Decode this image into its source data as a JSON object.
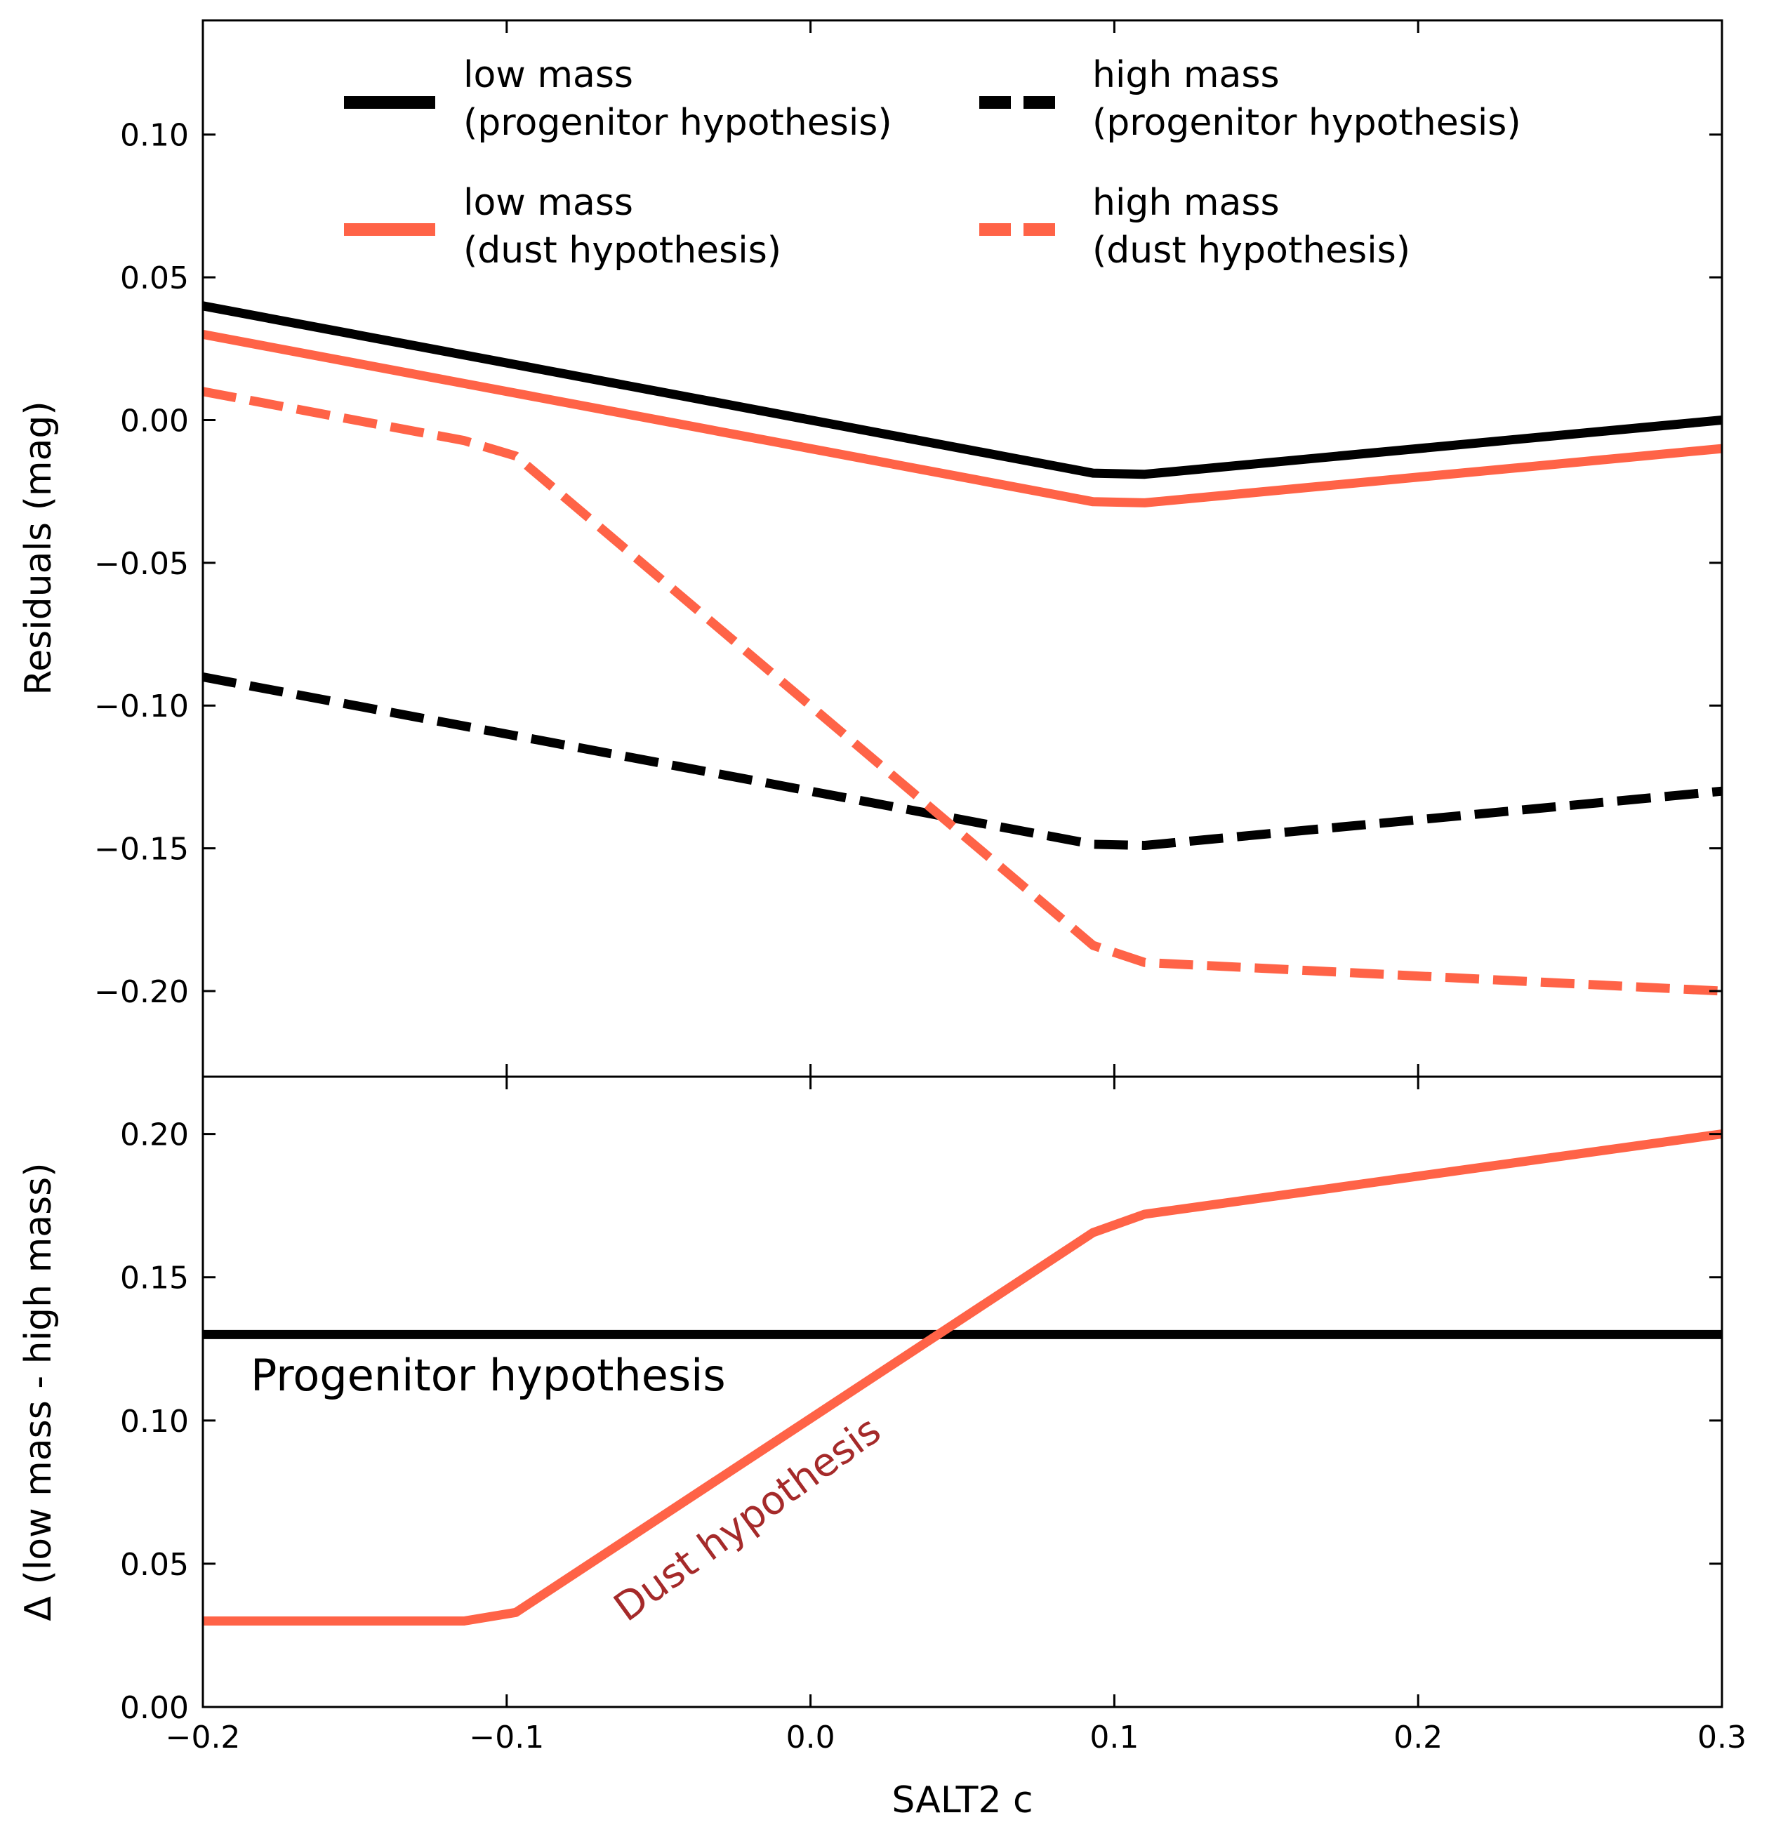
{
  "colors": {
    "progenitor": "#000000",
    "dust": "#FF6347",
    "dust_label": "#A52A2A"
  },
  "chart_data": [
    {
      "type": "line",
      "panel": "top",
      "xlabel": "SALT2 c",
      "ylabel": "Residuals (mag)",
      "xlim": [
        -0.2,
        0.3
      ],
      "ylim": [
        -0.23,
        0.14
      ],
      "yticks": [
        0.1,
        0.05,
        0.0,
        -0.05,
        -0.1,
        -0.15,
        -0.2
      ],
      "ytick_labels": [
        "0.10",
        "0.05",
        "0.00",
        "−0.05",
        "−0.10",
        "−0.15",
        "−0.20"
      ],
      "legend_placement": "upper center, two columns",
      "series": [
        {
          "name": "low mass (progenitor hypothesis)",
          "label_line1": "low mass",
          "label_line2": "(progenitor hypothesis)",
          "color": "progenitor",
          "dash": "solid",
          "x": [
            -0.2,
            0.093,
            0.11,
            0.3
          ],
          "y": [
            0.04,
            -0.0186,
            -0.019,
            0.0
          ]
        },
        {
          "name": "high mass (progenitor hypothesis)",
          "label_line1": "high mass",
          "label_line2": "(progenitor hypothesis)",
          "color": "progenitor",
          "dash": "dashed",
          "x": [
            -0.2,
            0.093,
            0.11,
            0.3
          ],
          "y": [
            -0.09,
            -0.1486,
            -0.149,
            -0.13
          ]
        },
        {
          "name": "low mass (dust hypothesis)",
          "label_line1": "low mass",
          "label_line2": "(dust hypothesis)",
          "color": "dust",
          "dash": "solid",
          "x": [
            -0.2,
            0.093,
            0.11,
            0.3
          ],
          "y": [
            0.03,
            -0.0286,
            -0.029,
            -0.01
          ]
        },
        {
          "name": "high mass (dust hypothesis)",
          "label_line1": "high mass",
          "label_line2": "(dust hypothesis)",
          "color": "dust",
          "dash": "dashed",
          "x": [
            -0.2,
            -0.114,
            -0.097,
            0.093,
            0.11,
            0.3
          ],
          "y": [
            0.01,
            -0.0072,
            -0.0126,
            -0.184,
            -0.19,
            -0.2
          ]
        }
      ]
    },
    {
      "type": "line",
      "panel": "bottom",
      "xlabel": "SALT2 c",
      "ylabel": "Δ (low mass - high mass)",
      "xlim": [
        -0.2,
        0.3
      ],
      "ylim": [
        0.0,
        0.22
      ],
      "xticks": [
        -0.2,
        -0.1,
        0.0,
        0.1,
        0.2,
        0.3
      ],
      "xtick_labels": [
        "−0.2",
        "−0.1",
        "0.0",
        "0.1",
        "0.2",
        "0.3"
      ],
      "yticks": [
        0.0,
        0.05,
        0.1,
        0.15,
        0.2
      ],
      "ytick_labels": [
        "0.00",
        "0.05",
        "0.10",
        "0.15",
        "0.20"
      ],
      "series": [
        {
          "name": "Progenitor hypothesis",
          "color": "progenitor",
          "dash": "solid",
          "x": [
            -0.2,
            0.3
          ],
          "y": [
            0.13,
            0.13
          ]
        },
        {
          "name": "Dust hypothesis",
          "color": "dust",
          "dash": "solid",
          "x": [
            -0.2,
            -0.114,
            -0.097,
            0.093,
            0.11,
            0.3
          ],
          "y": [
            0.03,
            0.03,
            0.033,
            0.1656,
            0.172,
            0.2
          ]
        }
      ],
      "annotations": [
        {
          "text": "Progenitor hypothesis",
          "x": -0.184,
          "y": 0.112,
          "color": "progenitor"
        },
        {
          "text": "Dust hypothesis",
          "x": -0.062,
          "y": 0.031,
          "color": "dust_label",
          "rotation_deg": -36
        }
      ]
    }
  ]
}
